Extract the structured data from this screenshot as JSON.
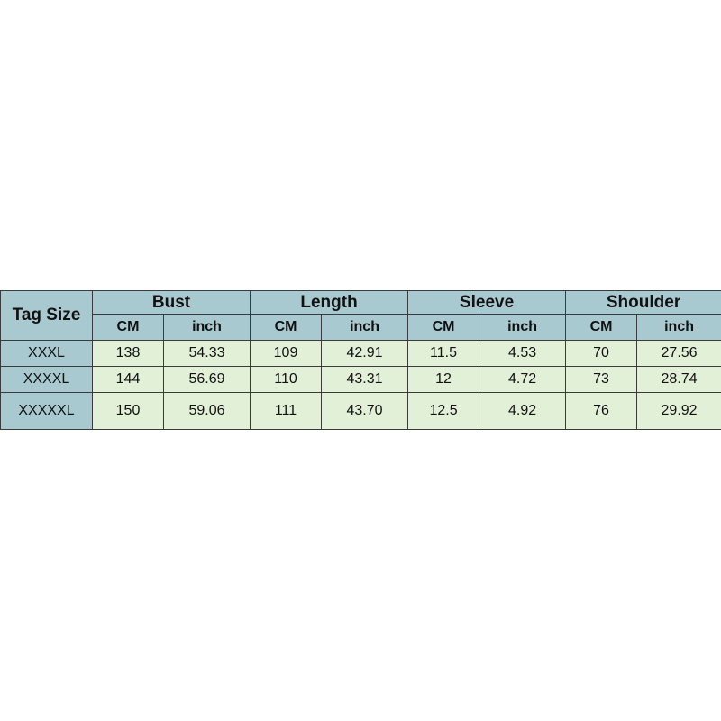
{
  "table": {
    "corner": "Tag Size",
    "groups": [
      {
        "name": "Bust",
        "units": [
          "CM",
          "inch"
        ]
      },
      {
        "name": "Length",
        "units": [
          "CM",
          "inch"
        ]
      },
      {
        "name": "Sleeve",
        "units": [
          "CM",
          "inch"
        ]
      },
      {
        "name": "Shoulder",
        "units": [
          "CM",
          "inch"
        ]
      }
    ],
    "rows": [
      [
        "XXXL",
        "138",
        "54.33",
        "109",
        "42.91",
        "11.5",
        "4.53",
        "70",
        "27.56"
      ],
      [
        "XXXXL",
        "144",
        "56.69",
        "110",
        "43.31",
        "12",
        "4.72",
        "73",
        "28.74"
      ],
      [
        "XXXXXL",
        "150",
        "59.06",
        "111",
        "43.70",
        "12.5",
        "4.92",
        "76",
        "29.92"
      ]
    ]
  }
}
